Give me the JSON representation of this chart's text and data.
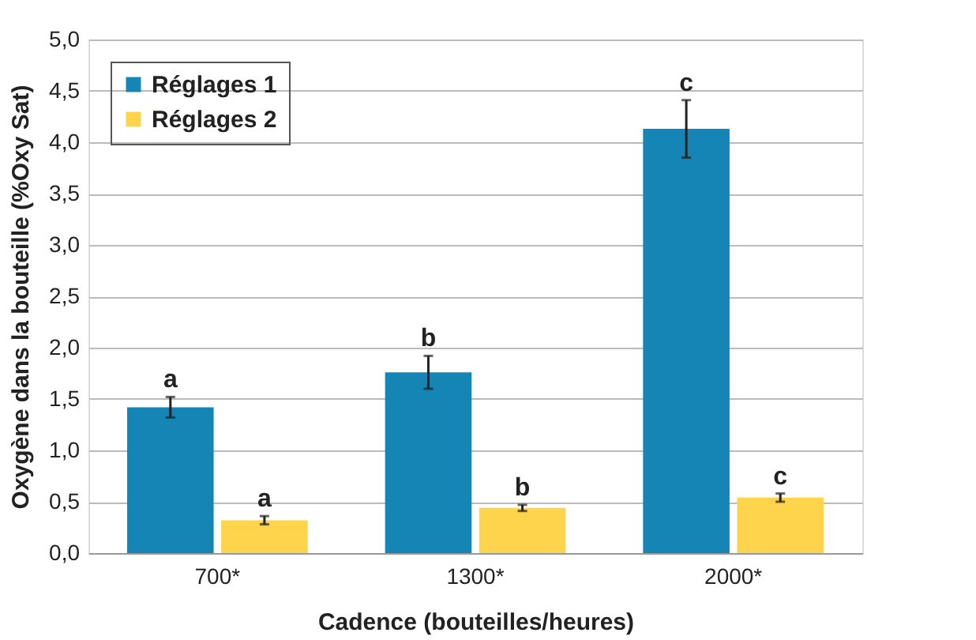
{
  "chart_data": {
    "type": "bar",
    "xlabel": "Cadence (bouteilles/heures)",
    "ylabel": "Oxygène dans la bouteille (%Oxy Sat)",
    "categories": [
      "700*",
      "1300*",
      "2000*"
    ],
    "series": [
      {
        "name": "Réglages 1",
        "color": "#1585b5",
        "values": [
          1.42,
          1.76,
          4.13
        ],
        "errors": [
          0.1,
          0.16,
          0.28
        ],
        "value_labels": [
          "a",
          "b",
          "c"
        ]
      },
      {
        "name": "Réglages 2",
        "color": "#fed44c",
        "values": [
          0.32,
          0.44,
          0.54
        ],
        "errors": [
          0.04,
          0.03,
          0.04
        ],
        "value_labels": [
          "a",
          "b",
          "c"
        ]
      }
    ],
    "ylim": [
      0,
      5
    ],
    "yticks": [
      {
        "value": 0,
        "label": "0,0"
      },
      {
        "value": 0.5,
        "label": "0,5"
      },
      {
        "value": 1,
        "label": "1,0"
      },
      {
        "value": 1.5,
        "label": "1,5"
      },
      {
        "value": 2,
        "label": "2,0"
      },
      {
        "value": 2.5,
        "label": "2,5"
      },
      {
        "value": 3,
        "label": "3,0"
      },
      {
        "value": 3.5,
        "label": "3,5"
      },
      {
        "value": 4,
        "label": "4,0"
      },
      {
        "value": 4.5,
        "label": "4,5"
      },
      {
        "value": 5,
        "label": "5,0"
      }
    ],
    "grid": "y",
    "legend": "top left"
  }
}
